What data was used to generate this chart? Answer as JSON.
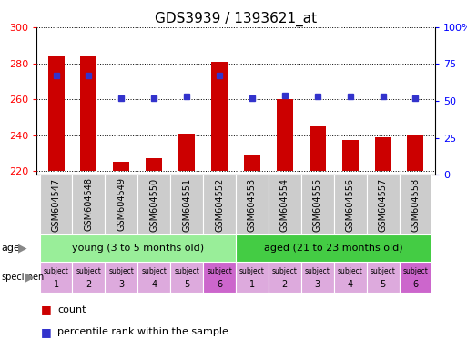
{
  "title": "GDS3939 / 1393621_at",
  "samples": [
    "GSM604547",
    "GSM604548",
    "GSM604549",
    "GSM604550",
    "GSM604551",
    "GSM604552",
    "GSM604553",
    "GSM604554",
    "GSM604555",
    "GSM604556",
    "GSM604557",
    "GSM604558"
  ],
  "bar_values": [
    284,
    284,
    225,
    227,
    241,
    281,
    229,
    260,
    245,
    237,
    239,
    240
  ],
  "bar_base": 220,
  "percentile_values": [
    67,
    67,
    52,
    52,
    53,
    67,
    52,
    54,
    53,
    53,
    53,
    52
  ],
  "ylim_left": [
    218,
    300
  ],
  "ylim_right": [
    0,
    100
  ],
  "yticks_left": [
    220,
    240,
    260,
    280,
    300
  ],
  "yticks_right": [
    0,
    25,
    50,
    75,
    100
  ],
  "bar_color": "#cc0000",
  "dot_color": "#3333cc",
  "age_groups": [
    {
      "label": "young (3 to 5 months old)",
      "start": 0,
      "end": 6,
      "color": "#99ee99"
    },
    {
      "label": "aged (21 to 23 months old)",
      "start": 6,
      "end": 12,
      "color": "#44cc44"
    }
  ],
  "specimen_colors_light": "#ddaadd",
  "specimen_color_dark": "#cc66cc",
  "specimen_dark_idx": [
    5,
    11
  ],
  "specimen_labels_top": [
    "subject",
    "subject",
    "subject",
    "subject",
    "subject",
    "subject",
    "subject",
    "subject",
    "subject",
    "subject",
    "subject",
    "subject"
  ],
  "specimen_labels_bot": [
    "1",
    "2",
    "3",
    "4",
    "5",
    "6",
    "1",
    "2",
    "3",
    "4",
    "5",
    "6"
  ],
  "tick_bg_color": "#cccccc",
  "legend_count_color": "#cc0000",
  "legend_dot_color": "#3333cc",
  "bar_width": 0.5
}
